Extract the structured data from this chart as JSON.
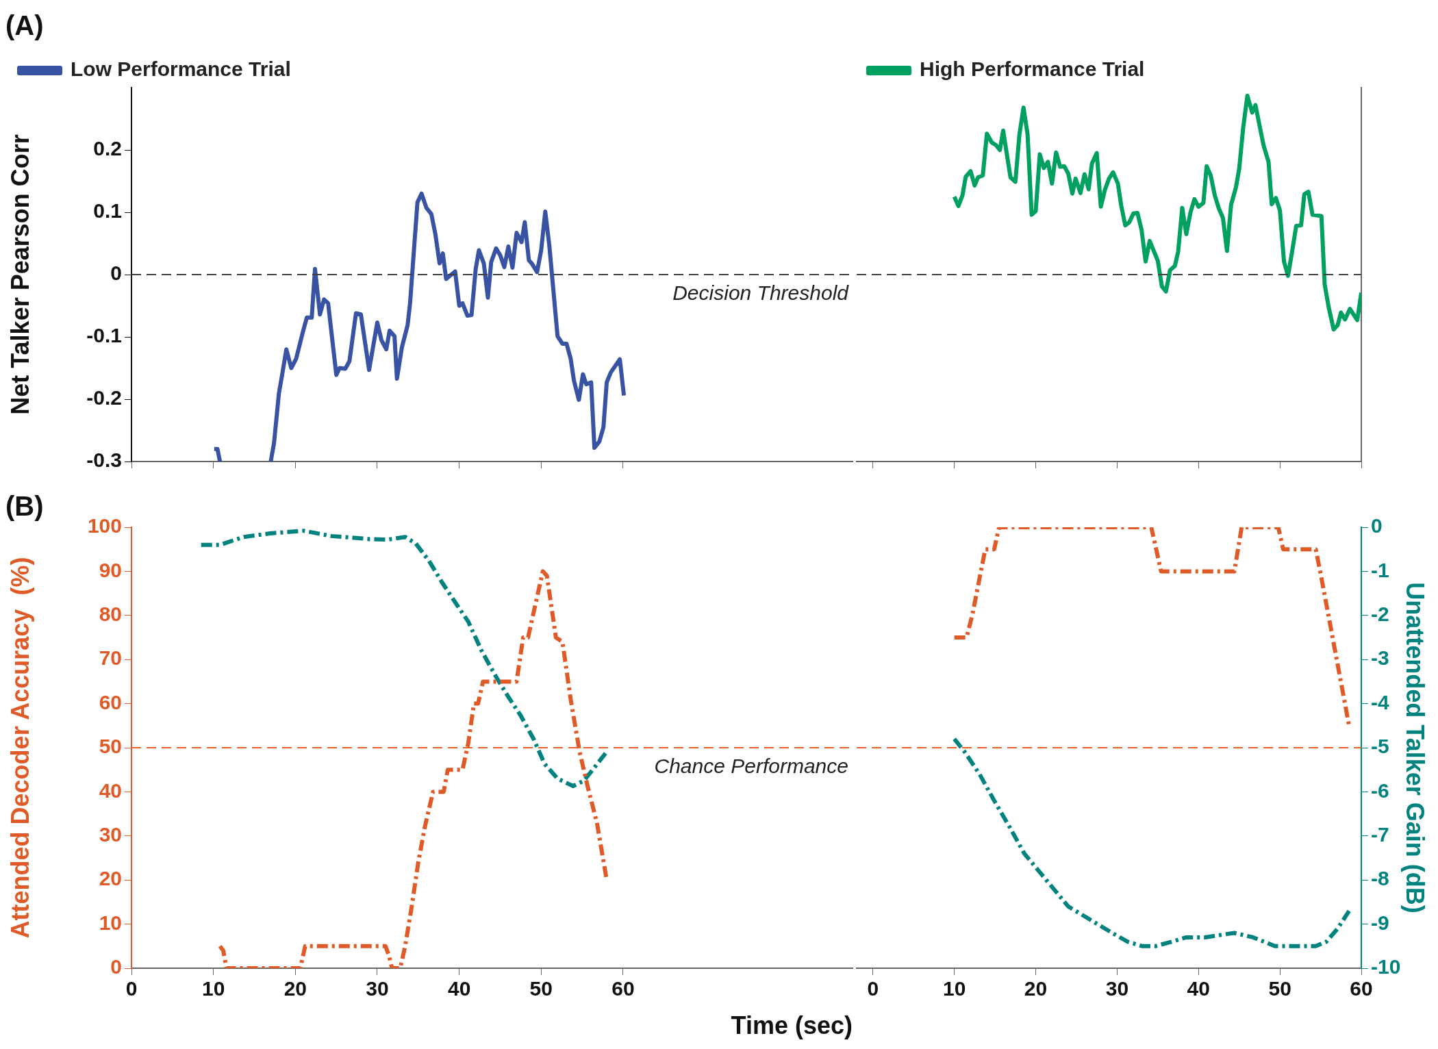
{
  "chart_data": [
    {
      "type": "line",
      "title": "(A)",
      "ylabel": "Net Talker Pearson Corr",
      "xlim": [
        0,
        88
      ],
      "ylim": [
        -0.3,
        0.3
      ],
      "xticks": [
        {
          "value": 0,
          "label": null
        },
        {
          "value": 10,
          "label": null
        },
        {
          "value": 20,
          "label": null
        },
        {
          "value": 30,
          "label": null
        },
        {
          "value": 40,
          "label": null
        },
        {
          "value": 50,
          "label": null
        },
        {
          "value": 60,
          "label": null
        }
      ],
      "yticks": [
        -0.3,
        -0.2,
        -0.1,
        0,
        0.1,
        0.2
      ],
      "tick_labels": "y",
      "legend": "top left",
      "marker": "none",
      "grid": false,
      "ref_lines": [
        {
          "axis": "y",
          "value": 0,
          "label": "Decision Threshold",
          "color": "#404040",
          "line_style": "dashed"
        }
      ],
      "series": [
        {
          "name": "Low Performance Trial",
          "color": "#3953a4",
          "x": [
            10.1,
            10.5,
            10.8,
            14,
            17.0,
            17.4,
            18.0,
            18.4,
            18.9,
            19.5,
            20.1,
            20.9,
            21.4,
            22.0,
            22.4,
            23.0,
            23.5,
            24.0,
            25.0,
            25.4,
            26.1,
            26.6,
            27.4,
            28.0,
            29.0,
            30.0,
            30.5,
            31.1,
            31.5,
            32.1,
            32.4,
            33.0,
            33.7,
            34.0,
            34.9,
            35.4,
            36.0,
            36.6,
            37.1,
            37.6,
            38.0,
            38.4,
            39.5,
            40.0,
            40.4,
            41.0,
            41.5,
            42.0,
            42.4,
            43.0,
            43.5,
            43.9,
            44.5,
            45.0,
            45.5,
            46.0,
            46.5,
            47.0,
            47.6,
            48.0,
            48.5,
            48.9,
            49.5,
            50.0,
            50.5,
            51.0,
            52.0,
            52.6,
            53.1,
            53.6,
            54.0,
            54.6,
            55.1,
            55.5,
            56.1,
            56.5,
            57.1,
            57.6,
            58.0,
            58.5,
            59.6,
            60.1
          ],
          "values": [
            -0.28,
            -0.28,
            -0.3,
            null,
            -0.3,
            -0.27,
            -0.19,
            -0.16,
            -0.12,
            -0.15,
            -0.135,
            -0.093,
            -0.069,
            -0.069,
            0.009,
            -0.064,
            -0.04,
            -0.046,
            -0.161,
            -0.15,
            -0.151,
            -0.139,
            -0.062,
            -0.064,
            -0.153,
            -0.077,
            -0.105,
            -0.12,
            -0.09,
            -0.099,
            -0.167,
            -0.117,
            -0.081,
            -0.046,
            0.116,
            0.13,
            0.107,
            0.097,
            0.064,
            0.018,
            0.034,
            -0.007,
            0.005,
            -0.05,
            -0.046,
            -0.066,
            -0.065,
            0.008,
            0.039,
            0.018,
            -0.037,
            0.02,
            0.042,
            0.031,
            0.012,
            0.045,
            0.011,
            0.067,
            0.052,
            0.084,
            0.023,
            0.017,
            0.004,
            0.039,
            0.101,
            0.046,
            -0.099,
            -0.111,
            -0.111,
            -0.135,
            -0.17,
            -0.201,
            -0.16,
            -0.176,
            -0.173,
            -0.278,
            -0.268,
            -0.245,
            -0.173,
            -0.157,
            -0.136,
            -0.194
          ]
        }
      ]
    },
    {
      "type": "line",
      "xlim": [
        -2,
        60
      ],
      "ylim": [
        -0.3,
        0.3
      ],
      "xticks": [
        {
          "value": 0,
          "label": null
        },
        {
          "value": 10,
          "label": null
        },
        {
          "value": 20,
          "label": null
        },
        {
          "value": 30,
          "label": null
        },
        {
          "value": 40,
          "label": null
        },
        {
          "value": 50,
          "label": null
        },
        {
          "value": 60,
          "label": null
        }
      ],
      "tick_labels": false,
      "legend": "top left",
      "marker": "none",
      "grid": false,
      "ref_lines": [
        {
          "axis": "y",
          "value": 0,
          "color": "#404040",
          "line_style": "dashed"
        }
      ],
      "series": [
        {
          "name": "High Performance Trial",
          "color": "#00a060",
          "x": [
            10.0,
            10.5,
            11.0,
            11.4,
            12.0,
            12.5,
            12.9,
            13.5,
            14.0,
            14.6,
            15.1,
            15.6,
            16.0,
            16.9,
            17.5,
            18.0,
            18.5,
            19.0,
            19.5,
            20.0,
            20.5,
            21.0,
            21.5,
            22.0,
            22.5,
            23.0,
            23.5,
            24.0,
            24.5,
            24.9,
            25.5,
            26.0,
            26.5,
            26.9,
            27.5,
            28.0,
            28.5,
            29.0,
            29.5,
            30.1,
            30.5,
            31.0,
            31.5,
            32.0,
            32.5,
            33.0,
            33.5,
            34.0,
            35.0,
            35.5,
            36.0,
            36.5,
            37.1,
            37.5,
            38.0,
            38.5,
            39.0,
            39.5,
            40.0,
            40.6,
            41.0,
            41.5,
            42.0,
            42.5,
            43.0,
            43.5,
            44.0,
            44.6,
            45.0,
            45.5,
            46.0,
            46.6,
            47.0,
            47.5,
            48.0,
            48.6,
            49.0,
            49.5,
            50.0,
            50.5,
            51.0,
            51.5,
            52.0,
            52.6,
            53.0,
            53.5,
            54.0,
            55.1,
            55.5,
            56.0,
            56.6,
            57.1,
            57.5,
            58.0,
            58.6,
            59.5,
            60.0
          ],
          "values": [
            0.125,
            0.11,
            0.127,
            0.157,
            0.166,
            0.143,
            0.156,
            0.159,
            0.226,
            0.212,
            0.208,
            0.2,
            0.231,
            0.156,
            0.149,
            0.225,
            0.268,
            0.225,
            0.096,
            0.102,
            0.193,
            0.171,
            0.181,
            0.146,
            0.196,
            0.173,
            0.174,
            0.162,
            0.13,
            0.154,
            0.131,
            0.161,
            0.137,
            0.178,
            0.195,
            0.109,
            0.136,
            0.154,
            0.164,
            0.146,
            0.111,
            0.079,
            0.084,
            0.098,
            0.099,
            0.072,
            0.021,
            0.054,
            0.022,
            -0.019,
            -0.027,
            0.007,
            0.014,
            0.037,
            0.107,
            0.065,
            0.099,
            0.121,
            0.109,
            0.115,
            0.174,
            0.159,
            0.127,
            0.106,
            0.091,
            0.038,
            0.112,
            0.14,
            0.17,
            0.237,
            0.287,
            0.26,
            0.272,
            0.239,
            0.207,
            0.181,
            0.113,
            0.123,
            0.103,
            0.021,
            -0.002,
            0.037,
            0.078,
            0.079,
            0.129,
            0.133,
            0.096,
            0.094,
            -0.016,
            -0.053,
            -0.088,
            -0.081,
            -0.061,
            -0.072,
            -0.055,
            -0.073,
            -0.029
          ]
        }
      ]
    },
    {
      "type": "line",
      "title": "(B)",
      "xlabel": "Time (sec)",
      "ylabel": "Attended Decoder Accuracy  (%)",
      "xlim": [
        0,
        88
      ],
      "ylim": [
        0,
        100
      ],
      "y2lim": [
        -10,
        0
      ],
      "xticks": [
        0,
        10,
        20,
        30,
        40,
        50,
        60
      ],
      "yticks": [
        0,
        10,
        20,
        30,
        40,
        50,
        60,
        70,
        80,
        90,
        100
      ],
      "tick_labels": "xy",
      "marker": "none",
      "grid": false,
      "line_style": "dashed",
      "ref_lines": [
        {
          "axis": "y",
          "value": 50,
          "label": "Chance Performance",
          "color": "#e8602c",
          "line_style": "dashed"
        }
      ],
      "series": [
        {
          "color": "#e05a28",
          "x": [
            10.8,
            11.2,
            11.6,
            20.6,
            21.2,
            31.0,
            31.4,
            31.8,
            32.8,
            33.4,
            34.2,
            35.0,
            35.8,
            36.8,
            38.1,
            38.6,
            40.4,
            41.1,
            41.8,
            42.3,
            42.9,
            47.0,
            47.8,
            48.4,
            50.2,
            50.7,
            51.8,
            52.6,
            53.6,
            54.7,
            55.7,
            56.8,
            58.0
          ],
          "values": [
            5,
            4,
            0,
            0,
            5,
            5,
            3,
            0,
            0,
            5,
            14,
            24,
            32,
            40,
            40,
            45,
            45,
            51,
            60,
            60,
            65,
            65,
            75,
            75,
            90,
            89,
            75,
            74,
            61,
            49,
            41,
            33,
            20
          ]
        },
        {
          "color": "#00827f",
          "axis": "y2",
          "x": [
            8.5,
            10.8,
            13.7,
            16.9,
            21.0,
            24.4,
            29.1,
            31.3,
            33.4,
            34.7,
            36.3,
            37.9,
            39.5,
            41.1,
            42.7,
            44.3,
            45.9,
            47.5,
            49.1,
            50.4,
            52.0,
            53.9,
            55.2,
            56.5,
            58.0
          ],
          "values": [
            -0.4,
            -0.4,
            -0.22,
            -0.14,
            -0.08,
            -0.2,
            -0.27,
            -0.28,
            -0.22,
            -0.37,
            -0.76,
            -1.25,
            -1.7,
            -2.14,
            -2.79,
            -3.33,
            -3.82,
            -4.27,
            -4.81,
            -5.36,
            -5.7,
            -5.87,
            -5.75,
            -5.45,
            -5.09
          ]
        }
      ]
    },
    {
      "type": "line",
      "y2label": "Unattended Talker Gain (dB)",
      "xlim": [
        -2,
        60
      ],
      "ylim": [
        0,
        100
      ],
      "y2lim": [
        -10,
        0
      ],
      "xticks": [
        0,
        10,
        20,
        30,
        40,
        50,
        60
      ],
      "y2ticks": [
        -10,
        -9,
        -8,
        -7,
        -6,
        -5,
        -4,
        -3,
        -2,
        -1,
        0
      ],
      "tick_labels": "xy2",
      "marker": "none",
      "grid": false,
      "line_style": "dashed",
      "ref_lines": [
        {
          "axis": "y",
          "value": 50,
          "color": "#e8602c",
          "line_style": "dashed"
        }
      ],
      "series": [
        {
          "color": "#e05a28",
          "x": [
            10,
            11.5,
            12.2,
            13.8,
            14.9,
            15.5,
            34.2,
            35.4,
            44.4,
            45.3,
            49.8,
            50.4,
            54.4,
            55.0,
            58.5
          ],
          "values": [
            75,
            75,
            80,
            95,
            95,
            100,
            100,
            90,
            90,
            100,
            100,
            95,
            95,
            89.5,
            55
          ]
        },
        {
          "color": "#00827f",
          "axis": "y2",
          "x": [
            10,
            11.3,
            13.1,
            14.9,
            16.8,
            18.6,
            20.4,
            22.2,
            24.0,
            25.8,
            27.6,
            29.4,
            31.3,
            33.1,
            34.7,
            36.7,
            38.5,
            40.8,
            44.4,
            46.7,
            49.4,
            54.4,
            55.7,
            57.1,
            58.5
          ],
          "values": [
            -4.8,
            -5.1,
            -5.6,
            -6.2,
            -6.8,
            -7.4,
            -7.8,
            -8.2,
            -8.6,
            -8.8,
            -9.0,
            -9.2,
            -9.4,
            -9.5,
            -9.5,
            -9.4,
            -9.3,
            -9.3,
            -9.2,
            -9.3,
            -9.5,
            -9.5,
            -9.4,
            -9.1,
            -8.7
          ]
        }
      ]
    }
  ]
}
